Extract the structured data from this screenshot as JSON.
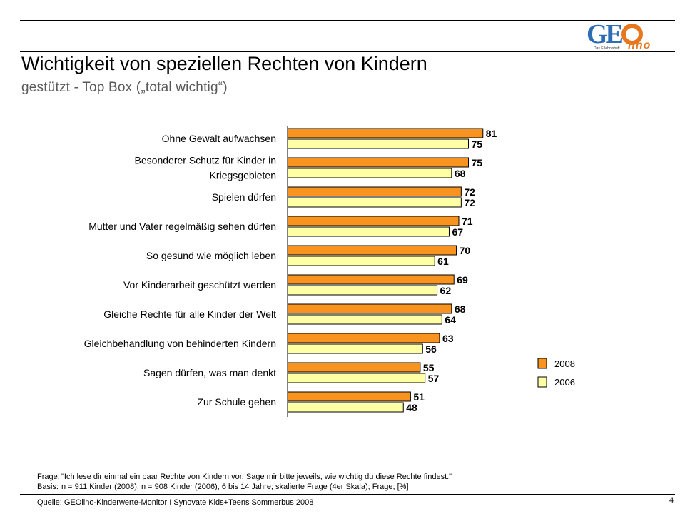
{
  "header": {
    "title": "Wichtigkeit von speziellen Rechten von Kindern",
    "subtitle": "gestützt - Top Box („total wichtig“)",
    "logo_text": "GEOlino",
    "logo_tagline": "Das Erlebnisheft"
  },
  "colors": {
    "series_2008": "#F7931E",
    "series_2006": "#FFFFA6",
    "accent_blue": "#2E6DB4",
    "accent_orange": "#E8761E"
  },
  "chart_data": {
    "type": "bar",
    "orientation": "horizontal",
    "categories": [
      [
        "Ohne Gewalt aufwachsen"
      ],
      [
        "Besonderer Schutz für Kinder in",
        "Kriegsgebieten"
      ],
      [
        "Spielen dürfen"
      ],
      [
        "Mutter und Vater regelmäßig sehen dürfen"
      ],
      [
        "So gesund wie möglich leben"
      ],
      [
        "Vor Kinderarbeit geschützt werden"
      ],
      [
        "Gleiche Rechte für alle Kinder der Welt"
      ],
      [
        "Gleichbehandlung von behinderten Kindern"
      ],
      [
        "Sagen dürfen, was man denkt"
      ],
      [
        "Zur Schule gehen"
      ]
    ],
    "series": [
      {
        "name": "2008",
        "color": "#F7931E",
        "values": [
          81,
          75,
          72,
          71,
          70,
          69,
          68,
          63,
          55,
          51
        ]
      },
      {
        "name": "2006",
        "color": "#FFFFA6",
        "values": [
          75,
          68,
          72,
          67,
          61,
          62,
          64,
          56,
          57,
          48
        ]
      }
    ],
    "xlim": [
      0,
      100
    ],
    "legend_position": "right",
    "grid": false
  },
  "footer": {
    "frage_key": "Frage:",
    "frage_text": "\"Ich lese dir einmal ein paar Rechte von Kindern vor. Sage mir bitte jeweils, wie wichtig du diese Rechte findest.\"",
    "basis_key": "Basis:",
    "basis_text": "n = 911 Kinder (2008), n = 908 Kinder (2006), 6 bis 14 Jahre; skalierte Frage (4er Skala); Frage; [%]",
    "source": "Quelle: GEOlino-Kinderwerte-Monitor I Synovate Kids+Teens Sommerbus 2008",
    "page_number": "4"
  }
}
